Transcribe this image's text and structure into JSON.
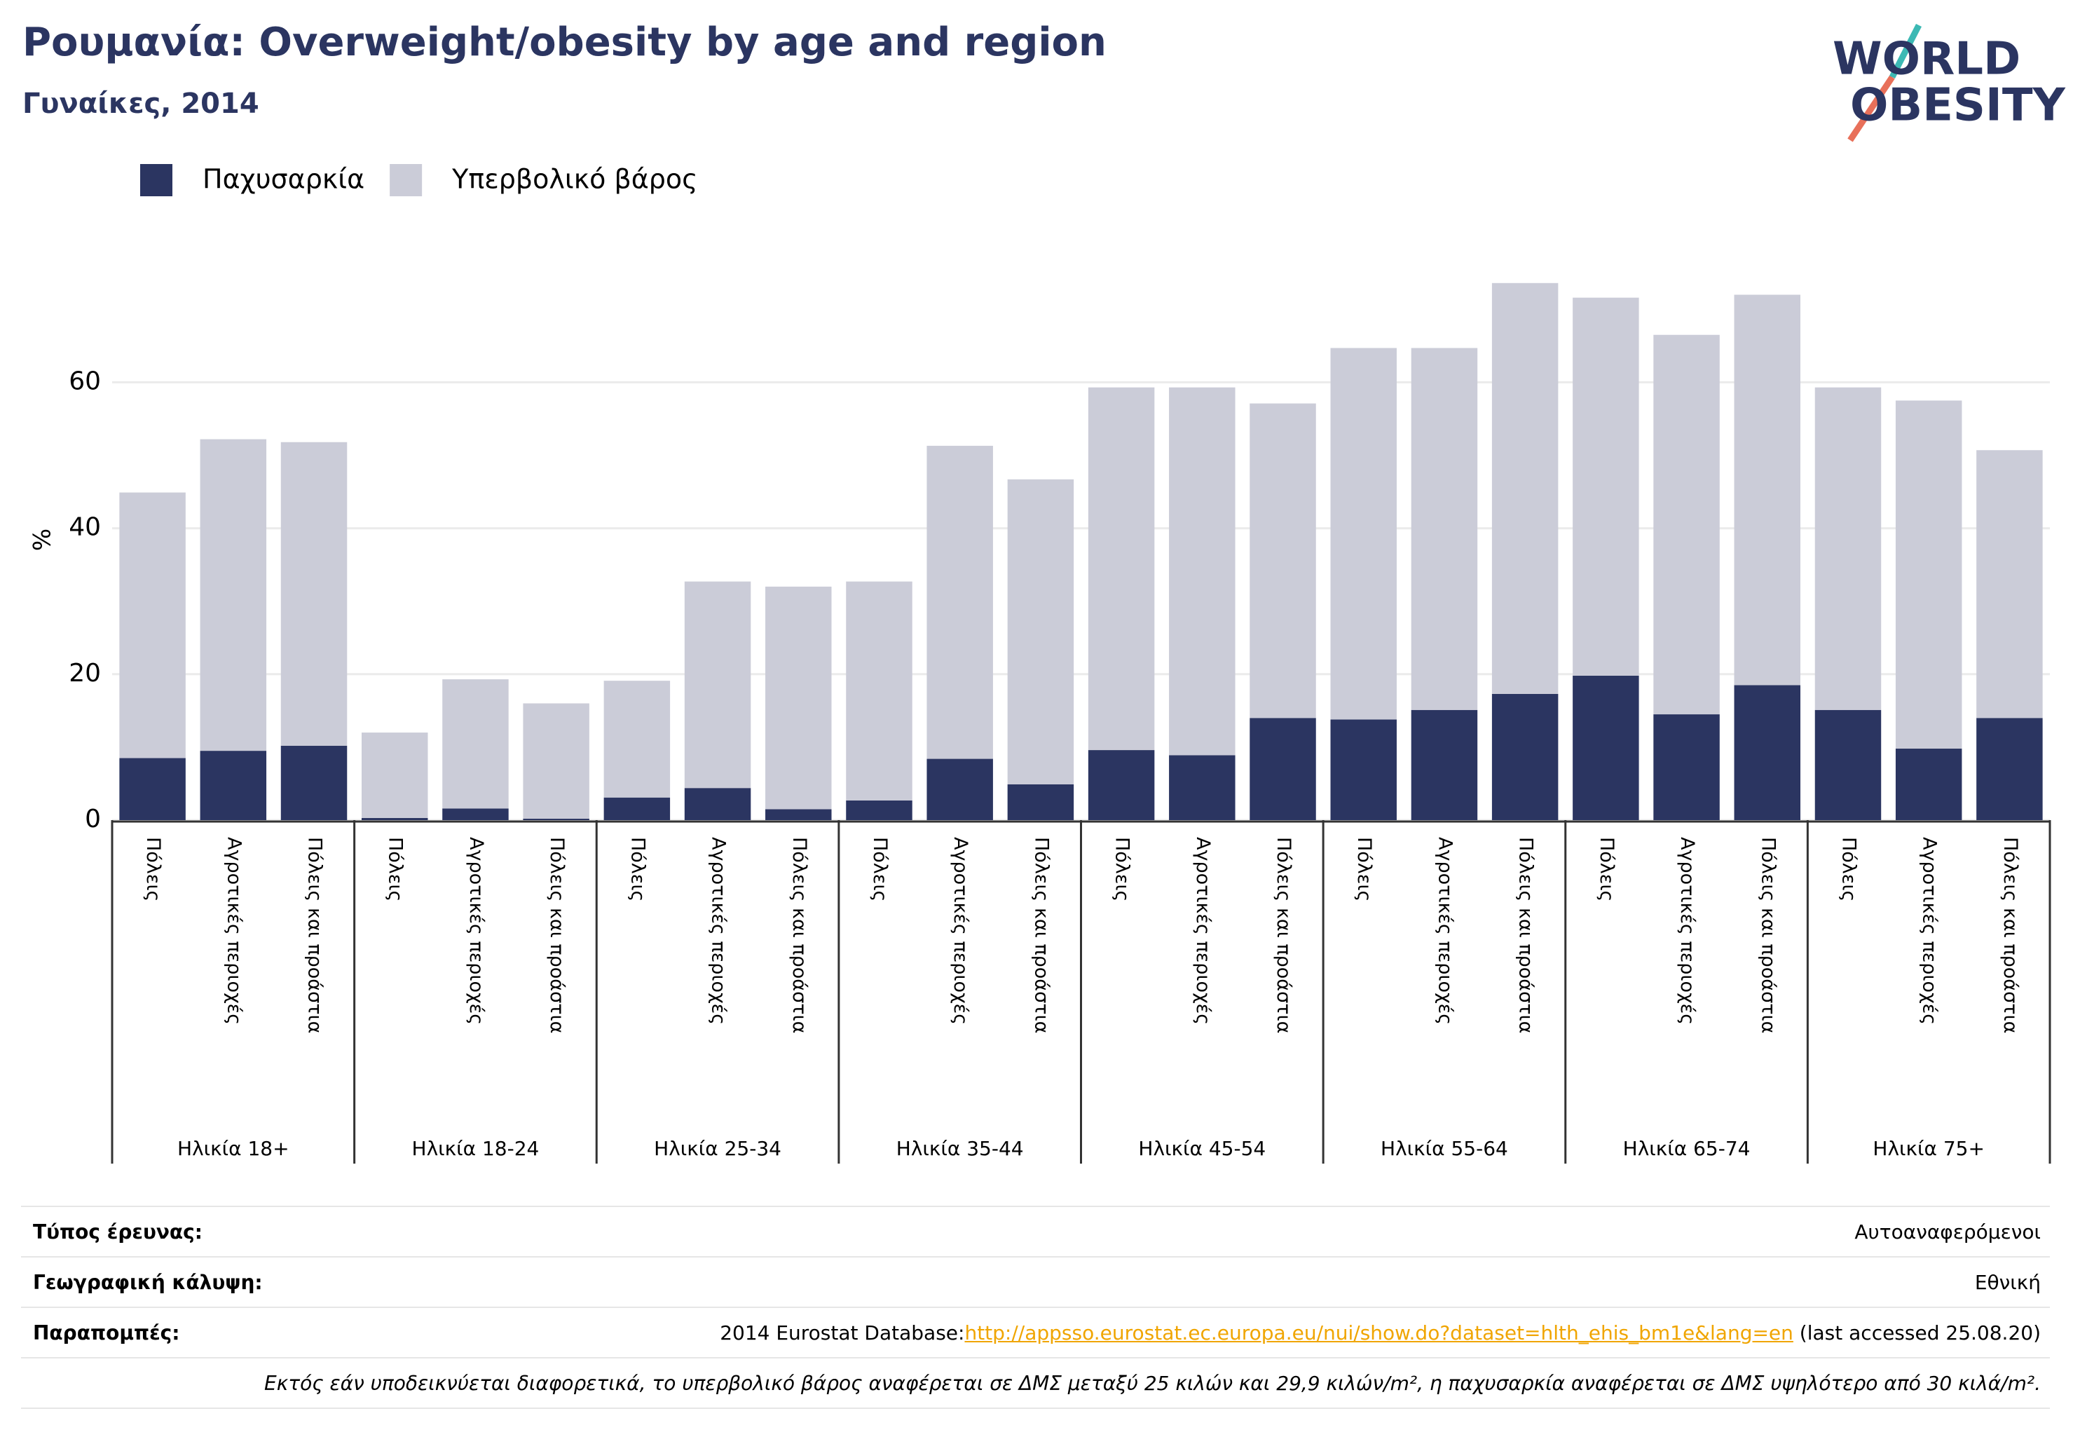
{
  "chart_data": {
    "type": "stacked_bar",
    "title": "Ρουμανία: Overweight/obesity by age and region",
    "subtitle": "Γυναίκες, 2014",
    "logo": [
      "WORLD",
      "OBESITY"
    ],
    "y_label": "%",
    "groups": [
      "Ηλικία 18+",
      "Ηλικία 18-24",
      "Ηλικία 25-34",
      "Ηλικία 35-44",
      "Ηλικία 45-54",
      "Ηλικία 55-64",
      "Ηλικία 65-74",
      "Ηλικία 75+"
    ],
    "categories": [
      "Πόλεις",
      "Αγροτικές περιοχές",
      "Πόλεις και προάστια",
      "Πόλεις",
      "Αγροτικές περιοχές",
      "Πόλεις και προάστια",
      "Πόλεις",
      "Αγροτικές περιοχές",
      "Πόλεις και προάστια",
      "Πόλεις",
      "Αγροτικές περιοχές",
      "Πόλεις και προάστια",
      "Πόλεις",
      "Αγροτικές περιοχές",
      "Πόλεις και προάστια",
      "Πόλεις",
      "Αγροτικές περιοχές",
      "Πόλεις και προάστια",
      "Πόλεις",
      "Αγροτικές περιοχές",
      "Πόλεις και προάστια",
      "Πόλεις",
      "Αγροτικές περιοχές",
      "Πόλεις και προάστια"
    ],
    "series": [
      {
        "name": "Παχυσαρκία",
        "color": "#2b3561",
        "values": [
          8.5,
          9.5,
          10.2,
          0.3,
          1.6,
          0.2,
          3.1,
          4.4,
          1.5,
          2.7,
          8.4,
          4.9,
          9.6,
          8.9,
          14.0,
          13.8,
          15.1,
          17.3,
          19.8,
          14.5,
          18.5,
          15.1,
          9.8,
          14.0
        ]
      },
      {
        "name": "Υπερβολικό βάρος",
        "color": "#cbccd8",
        "values": [
          36.4,
          42.7,
          41.6,
          11.7,
          17.7,
          15.8,
          16.0,
          28.3,
          30.5,
          30.0,
          42.9,
          41.8,
          49.7,
          50.4,
          43.1,
          50.9,
          49.6,
          56.3,
          51.8,
          52.0,
          53.5,
          44.2,
          47.7,
          36.7
        ]
      }
    ],
    "ylim": [
      0,
      78
    ],
    "yticks": [
      0,
      20,
      40,
      60
    ],
    "grid": true,
    "legend": "top-left"
  },
  "footer": {
    "rows": [
      {
        "label": "Τύπος έρευνας:",
        "value": "Αυτοαναφερόμενοι"
      },
      {
        "label": "Γεωγραφική κάλυψη:",
        "value": "Εθνική"
      },
      {
        "label": "Παραπομπές:",
        "prefix": "2014 Eurostat Database:",
        "link": "http://appsso.eurostat.ec.europa.eu/nui/show.do?dataset=hlth_ehis_bm1e&lang=en",
        "suffix": " (last accessed 25.08.20)"
      }
    ],
    "note": "Εκτός εάν υποδεικνύεται διαφορετικά, το υπερβολικό βάρος αναφέρεται σε ΔΜΣ μεταξύ 25 κιλών και 29,9 κιλών/m², η παχυσαρκία αναφέρεται σε ΔΜΣ υψηλότερο από 30 κιλά/m²."
  }
}
